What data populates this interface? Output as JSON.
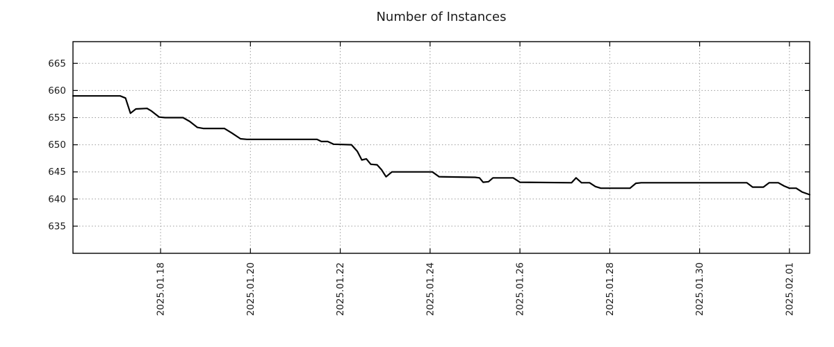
{
  "chart_data": {
    "type": "line",
    "title": "Number of Instances",
    "xlabel": "",
    "ylabel": "",
    "x_unit": "day-of-year-2025 decimal (16 = Jan 16, 32 = Feb 01)",
    "xlim": [
      16.05,
      32.45
    ],
    "ylim": [
      630,
      669
    ],
    "grid": true,
    "legend": "none",
    "line_color": "#000000",
    "grid_color": "#9a9a9a",
    "axis_color": "#000000",
    "text_color": "#1a1a1a",
    "background_color": "#ffffff",
    "yticks": [
      635,
      640,
      645,
      650,
      655,
      660,
      665
    ],
    "xticks": [
      {
        "x": 18,
        "label": "2025.01.18"
      },
      {
        "x": 20,
        "label": "2025.01.20"
      },
      {
        "x": 22,
        "label": "2025.01.22"
      },
      {
        "x": 24,
        "label": "2025.01.24"
      },
      {
        "x": 26,
        "label": "2025.01.26"
      },
      {
        "x": 28,
        "label": "2025.01.28"
      },
      {
        "x": 30,
        "label": "2025.01.30"
      },
      {
        "x": 32,
        "label": "2025.02.01"
      }
    ],
    "series": [
      {
        "name": "instances",
        "points": [
          [
            16.05,
            659
          ],
          [
            17.1,
            659
          ],
          [
            17.22,
            658.6
          ],
          [
            17.33,
            655.8
          ],
          [
            17.45,
            656.6
          ],
          [
            17.7,
            656.7
          ],
          [
            17.8,
            656.2
          ],
          [
            17.97,
            655.1
          ],
          [
            18.1,
            655
          ],
          [
            18.5,
            655
          ],
          [
            18.65,
            654.3
          ],
          [
            18.82,
            653.2
          ],
          [
            18.95,
            653
          ],
          [
            19.42,
            653
          ],
          [
            19.58,
            652.2
          ],
          [
            19.78,
            651.1
          ],
          [
            19.92,
            651
          ],
          [
            21.48,
            651
          ],
          [
            21.58,
            650.6
          ],
          [
            21.72,
            650.6
          ],
          [
            21.85,
            650.1
          ],
          [
            22.25,
            650
          ],
          [
            22.38,
            648.8
          ],
          [
            22.48,
            647.2
          ],
          [
            22.58,
            647.4
          ],
          [
            22.68,
            646.4
          ],
          [
            22.82,
            646.3
          ],
          [
            22.92,
            645.4
          ],
          [
            23.02,
            644.1
          ],
          [
            23.15,
            645
          ],
          [
            23.3,
            645
          ],
          [
            24.05,
            645
          ],
          [
            24.2,
            644.1
          ],
          [
            25.0,
            644
          ],
          [
            25.1,
            643.9
          ],
          [
            25.18,
            643.1
          ],
          [
            25.3,
            643.2
          ],
          [
            25.4,
            643.9
          ],
          [
            25.85,
            643.9
          ],
          [
            26.0,
            643.1
          ],
          [
            27.15,
            643
          ],
          [
            27.25,
            643.9
          ],
          [
            27.37,
            643
          ],
          [
            27.55,
            643
          ],
          [
            27.68,
            642.3
          ],
          [
            27.8,
            642
          ],
          [
            28.45,
            642
          ],
          [
            28.58,
            642.9
          ],
          [
            28.7,
            643
          ],
          [
            31.05,
            643
          ],
          [
            31.18,
            642.2
          ],
          [
            31.42,
            642.2
          ],
          [
            31.55,
            643
          ],
          [
            31.75,
            643
          ],
          [
            31.88,
            642.4
          ],
          [
            32.0,
            642
          ],
          [
            32.15,
            642
          ],
          [
            32.28,
            641.3
          ],
          [
            32.45,
            640.8
          ]
        ]
      }
    ]
  }
}
